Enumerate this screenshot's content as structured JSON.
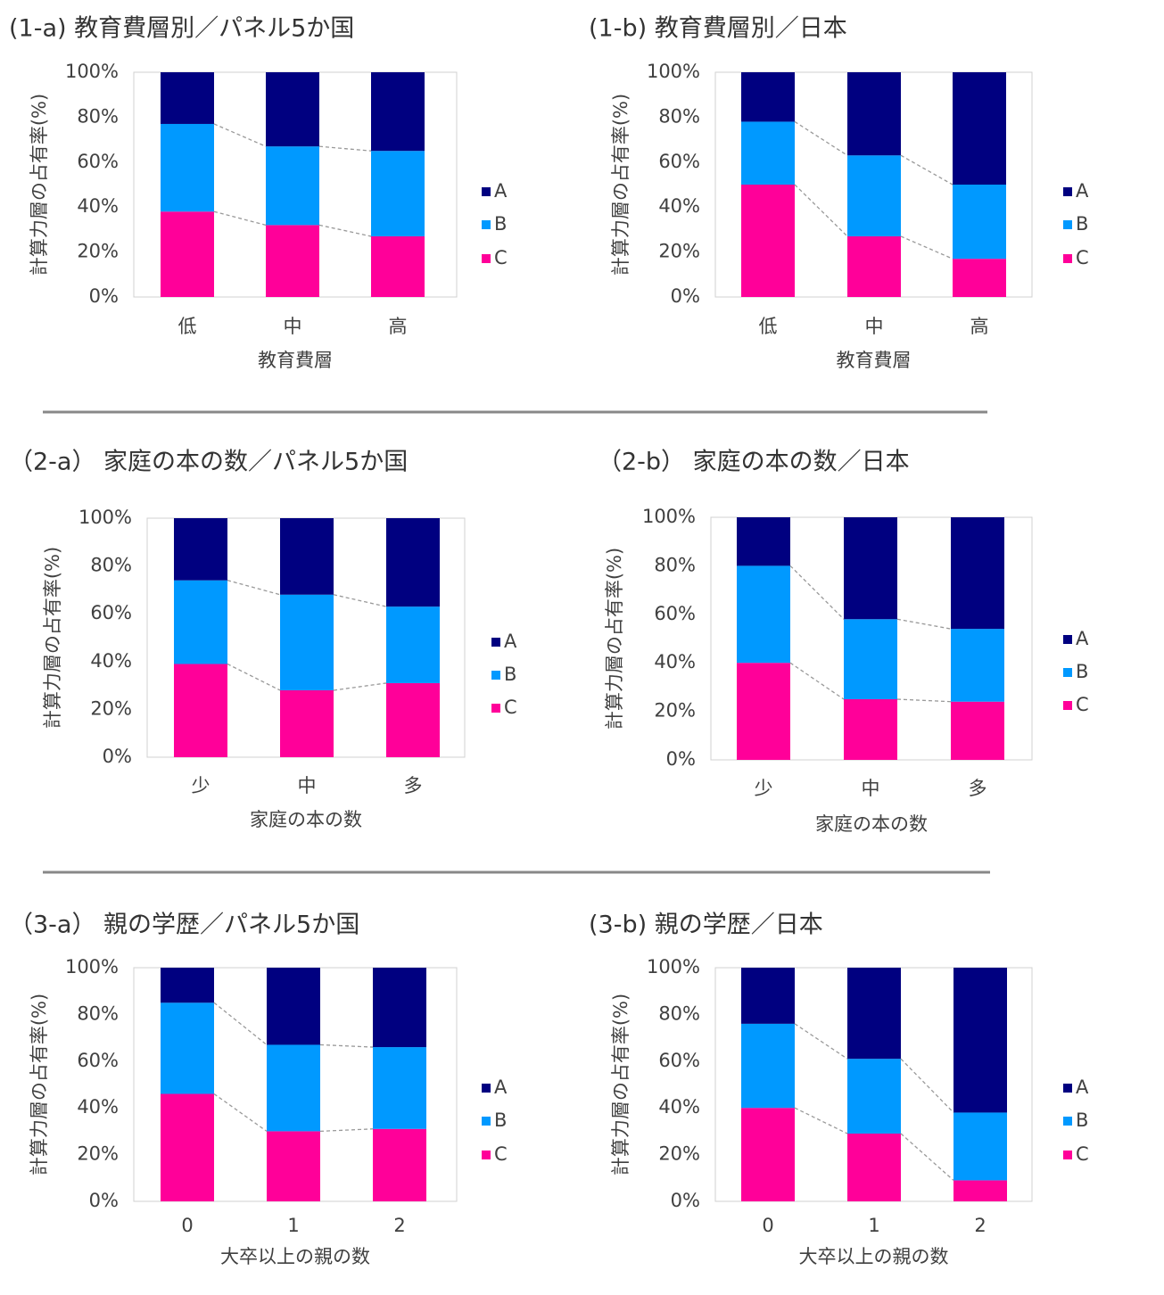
{
  "chart_data": [
    {
      "type": "stacked_bar",
      "title": "(1-a) 教育費層別／パネル5か国",
      "ylabel": "計算力層の占有率(%)",
      "xlabel": "教育費層",
      "categories": [
        "低",
        "中",
        "高"
      ],
      "series": [
        {
          "name": "A",
          "color": "#000080",
          "values": [
            23,
            33,
            35
          ]
        },
        {
          "name": "B",
          "color": "#0099ff",
          "values": [
            39,
            35,
            38
          ]
        },
        {
          "name": "C",
          "color": "#ff0099",
          "values": [
            38,
            32,
            27
          ]
        }
      ],
      "ylim": [
        0,
        100
      ],
      "yticks": [
        {
          "value": 0,
          "label": "0%"
        },
        {
          "value": 20,
          "label": "20%"
        },
        {
          "value": 40,
          "label": "40%"
        },
        {
          "value": 60,
          "label": "60%"
        },
        {
          "value": 80,
          "label": "80%"
        },
        {
          "value": 100,
          "label": "100%"
        }
      ],
      "grid": false,
      "legend": "right"
    },
    {
      "type": "stacked_bar",
      "title": "(1-b) 教育費層別／日本",
      "ylabel": "計算力層の占有率(%)",
      "xlabel": "教育費層",
      "categories": [
        "低",
        "中",
        "高"
      ],
      "series": [
        {
          "name": "A",
          "color": "#000080",
          "values": [
            22,
            37,
            50
          ]
        },
        {
          "name": "B",
          "color": "#0099ff",
          "values": [
            28,
            36,
            33
          ]
        },
        {
          "name": "C",
          "color": "#ff0099",
          "values": [
            50,
            27,
            17
          ]
        }
      ],
      "ylim": [
        0,
        100
      ],
      "yticks": [
        {
          "value": 0,
          "label": "0%"
        },
        {
          "value": 20,
          "label": "20%"
        },
        {
          "value": 40,
          "label": "40%"
        },
        {
          "value": 60,
          "label": "60%"
        },
        {
          "value": 80,
          "label": "80%"
        },
        {
          "value": 100,
          "label": "100%"
        }
      ],
      "grid": false,
      "legend": "right"
    },
    {
      "type": "stacked_bar",
      "title": "（2-a） 家庭の本の数／パネル5か国",
      "ylabel": "計算力層の占有率(%)",
      "xlabel": "家庭の本の数",
      "categories": [
        "少",
        "中",
        "多"
      ],
      "series": [
        {
          "name": "A",
          "color": "#000080",
          "values": [
            26,
            32,
            37
          ]
        },
        {
          "name": "B",
          "color": "#0099ff",
          "values": [
            35,
            40,
            32
          ]
        },
        {
          "name": "C",
          "color": "#ff0099",
          "values": [
            39,
            28,
            31
          ]
        }
      ],
      "ylim": [
        0,
        100
      ],
      "yticks": [
        {
          "value": 0,
          "label": "0%"
        },
        {
          "value": 20,
          "label": "20%"
        },
        {
          "value": 40,
          "label": "40%"
        },
        {
          "value": 60,
          "label": "60%"
        },
        {
          "value": 80,
          "label": "80%"
        },
        {
          "value": 100,
          "label": "100%"
        }
      ],
      "grid": false,
      "legend": "right"
    },
    {
      "type": "stacked_bar",
      "title": "（2-b） 家庭の本の数／日本",
      "ylabel": "計算力層の占有率(%)",
      "xlabel": "家庭の本の数",
      "categories": [
        "少",
        "中",
        "多"
      ],
      "series": [
        {
          "name": "A",
          "color": "#000080",
          "values": [
            20,
            42,
            46
          ]
        },
        {
          "name": "B",
          "color": "#0099ff",
          "values": [
            40,
            33,
            30
          ]
        },
        {
          "name": "C",
          "color": "#ff0099",
          "values": [
            40,
            25,
            24
          ]
        }
      ],
      "ylim": [
        0,
        100
      ],
      "yticks": [
        {
          "value": 0,
          "label": "0%"
        },
        {
          "value": 20,
          "label": "20%"
        },
        {
          "value": 40,
          "label": "40%"
        },
        {
          "value": 60,
          "label": "60%"
        },
        {
          "value": 80,
          "label": "80%"
        },
        {
          "value": 100,
          "label": "100%"
        }
      ],
      "grid": false,
      "legend": "right"
    },
    {
      "type": "stacked_bar",
      "title": "（3-a） 親の学歴／パネル5か国",
      "ylabel": "計算力層の占有率(%)",
      "xlabel": "大卒以上の親の数",
      "categories": [
        "0",
        "1",
        "2"
      ],
      "series": [
        {
          "name": "A",
          "color": "#000080",
          "values": [
            15,
            33,
            34
          ]
        },
        {
          "name": "B",
          "color": "#0099ff",
          "values": [
            39,
            37,
            35
          ]
        },
        {
          "name": "C",
          "color": "#ff0099",
          "values": [
            46,
            30,
            31
          ]
        }
      ],
      "ylim": [
        0,
        100
      ],
      "yticks": [
        {
          "value": 0,
          "label": "0%"
        },
        {
          "value": 20,
          "label": "20%"
        },
        {
          "value": 40,
          "label": "40%"
        },
        {
          "value": 60,
          "label": "60%"
        },
        {
          "value": 80,
          "label": "80%"
        },
        {
          "value": 100,
          "label": "100%"
        }
      ],
      "grid": false,
      "legend": "right"
    },
    {
      "type": "stacked_bar",
      "title": "(3-b) 親の学歴／日本",
      "ylabel": "計算力層の占有率(%)",
      "xlabel": "大卒以上の親の数",
      "categories": [
        "0",
        "1",
        "2"
      ],
      "series": [
        {
          "name": "A",
          "color": "#000080",
          "values": [
            24,
            39,
            62
          ]
        },
        {
          "name": "B",
          "color": "#0099ff",
          "values": [
            36,
            32,
            29
          ]
        },
        {
          "name": "C",
          "color": "#ff0099",
          "values": [
            40,
            29,
            9
          ]
        }
      ],
      "ylim": [
        0,
        100
      ],
      "yticks": [
        {
          "value": 0,
          "label": "0%"
        },
        {
          "value": 20,
          "label": "20%"
        },
        {
          "value": 40,
          "label": "40%"
        },
        {
          "value": 60,
          "label": "60%"
        },
        {
          "value": 80,
          "label": "80%"
        },
        {
          "value": 100,
          "label": "100%"
        }
      ],
      "grid": false,
      "legend": "right"
    }
  ]
}
